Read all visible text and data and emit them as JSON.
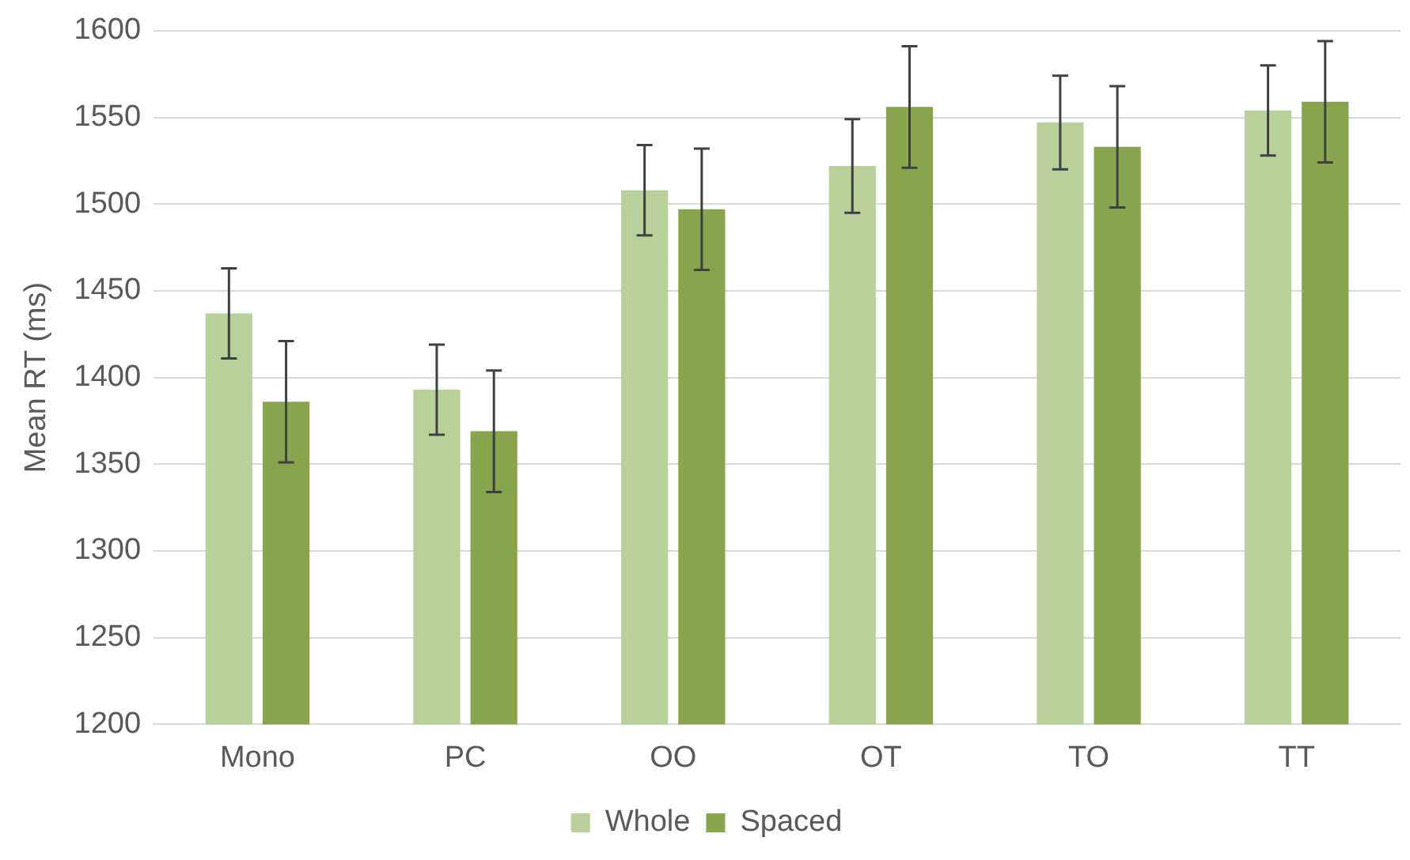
{
  "chart_data": {
    "type": "bar",
    "ylabel": "Mean RT (ms)",
    "categories": [
      "Mono",
      "PC",
      "OO",
      "OT",
      "TO",
      "TT"
    ],
    "series": [
      {
        "name": "Whole",
        "color": "#b9d09a",
        "values": [
          1437,
          1393,
          1508,
          1522,
          1547,
          1554
        ],
        "errors": [
          26,
          26,
          26,
          27,
          27,
          26
        ]
      },
      {
        "name": "Spaced",
        "color": "#88a54d",
        "values": [
          1386,
          1369,
          1497,
          1556,
          1533,
          1559
        ],
        "errors": [
          35,
          35,
          35,
          35,
          35,
          35
        ]
      }
    ],
    "ylim": [
      1200,
      1600
    ],
    "yticks": [
      1200,
      1250,
      1300,
      1350,
      1400,
      1450,
      1500,
      1550,
      1600
    ],
    "grid": "y",
    "legend": "bottom"
  }
}
